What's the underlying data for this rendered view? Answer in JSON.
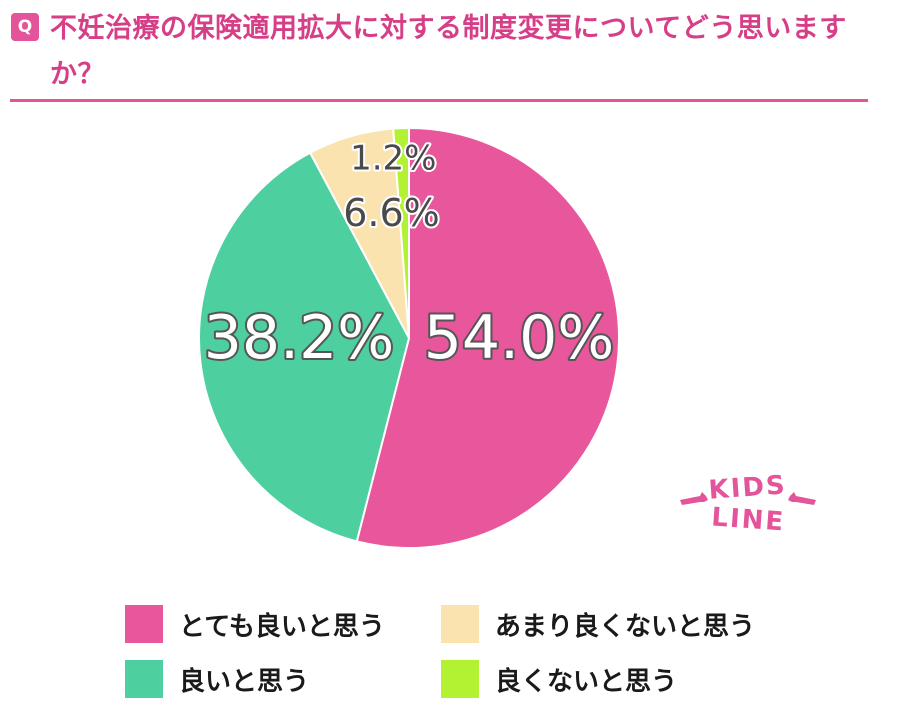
{
  "header": {
    "badge": "Q",
    "title": "不妊治療の保険適用拡大に対する制度変更についてどう思いますか？"
  },
  "logo": {
    "text_top": "KIDS",
    "text_bottom": "LINE",
    "color": "#e4549a"
  },
  "chart_data": {
    "type": "pie",
    "categories": [
      "とても良いと思う",
      "良いと思う",
      "あまり良くないと思う",
      "良くないと思う"
    ],
    "values": [
      54.0,
      38.2,
      6.6,
      1.2
    ],
    "value_labels": [
      "54.0%",
      "38.2%",
      "6.6%",
      "1.2%"
    ],
    "colors": [
      "#e8569b",
      "#4ecfa0",
      "#fbe3b0",
      "#b2f233"
    ],
    "start": "12 o'clock, clockwise",
    "legend_placement": "bottom"
  }
}
